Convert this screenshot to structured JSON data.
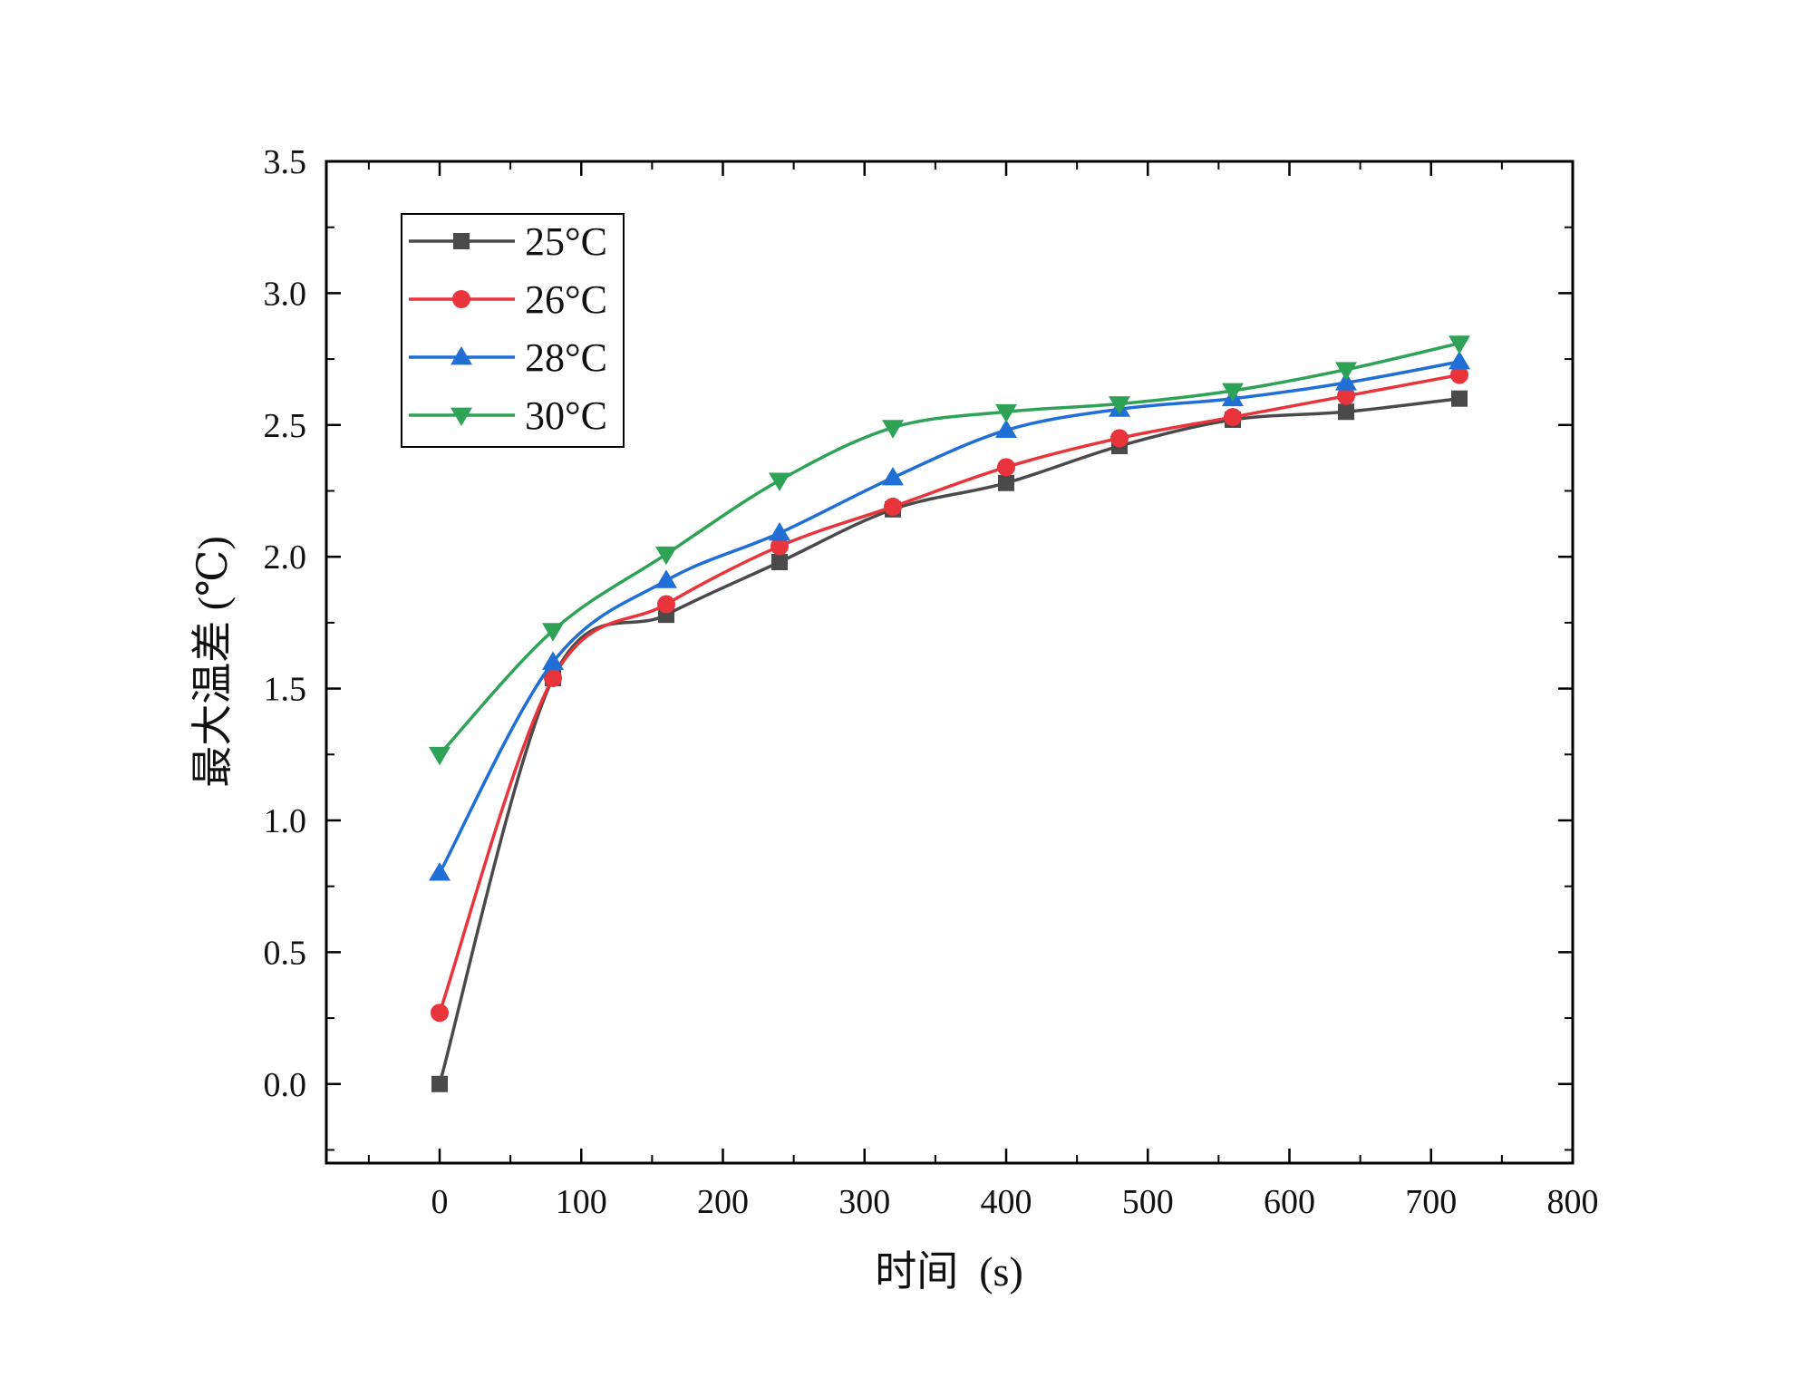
{
  "chart_data": {
    "type": "line",
    "xlabel": "时间  (s)",
    "ylabel": "最大温差 (℃)",
    "xlim": [
      -80,
      800
    ],
    "ylim": [
      -0.3,
      3.5
    ],
    "xticks": [
      0,
      100,
      200,
      300,
      400,
      500,
      600,
      700,
      800
    ],
    "yticks": [
      0.0,
      0.5,
      1.0,
      1.5,
      2.0,
      2.5,
      3.0,
      3.5
    ],
    "xtick_labels": [
      "0",
      "100",
      "200",
      "300",
      "400",
      "500",
      "600",
      "700",
      "800"
    ],
    "ytick_labels": [
      "0.0",
      "0.5",
      "1.0",
      "1.5",
      "2.0",
      "2.5",
      "3.0",
      "3.5"
    ],
    "grid": false,
    "legend_position": "top-left",
    "x": [
      0,
      80,
      160,
      240,
      320,
      400,
      480,
      560,
      640,
      720
    ],
    "series": [
      {
        "name": "25°C",
        "marker": "square",
        "color": "#4a4a4a",
        "values": [
          0.0,
          1.54,
          1.78,
          1.98,
          2.18,
          2.28,
          2.42,
          2.52,
          2.55,
          2.6
        ]
      },
      {
        "name": "26°C",
        "marker": "circle",
        "color": "#e8343a",
        "values": [
          0.27,
          1.54,
          1.82,
          2.04,
          2.19,
          2.34,
          2.45,
          2.53,
          2.61,
          2.69
        ]
      },
      {
        "name": "28°C",
        "marker": "triangle-up",
        "color": "#1f6fd6",
        "values": [
          0.8,
          1.6,
          1.91,
          2.09,
          2.3,
          2.48,
          2.56,
          2.6,
          2.66,
          2.74
        ]
      },
      {
        "name": "30°C",
        "marker": "triangle-down",
        "color": "#2ea256",
        "values": [
          1.25,
          1.72,
          2.01,
          2.29,
          2.49,
          2.55,
          2.58,
          2.63,
          2.71,
          2.81
        ]
      }
    ]
  }
}
